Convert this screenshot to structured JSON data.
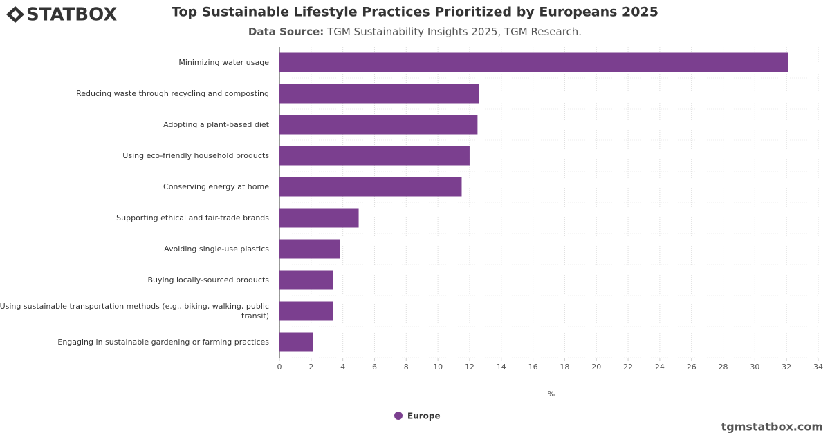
{
  "header": {
    "logo": "STATBOX",
    "title": "Top Sustainable Lifestyle Practices Prioritized by Europeans 2025",
    "source_label": "Data Source:",
    "source": "TGM Sustainability Insights 2025, TGM Research."
  },
  "chart_data": {
    "type": "bar",
    "orientation": "horizontal",
    "categories": [
      "Minimizing water usage",
      "Reducing waste through recycling and composting",
      "Adopting a plant-based diet",
      "Using eco-friendly household products",
      "Conserving energy at home",
      "Supporting ethical and fair-trade brands",
      "Avoiding single-use plastics",
      "Buying locally-sourced products",
      "Using sustainable transportation methods (e.g., biking, walking, public transit)",
      "Engaging in sustainable gardening or farming practices"
    ],
    "series": [
      {
        "name": "Europe",
        "color": "#7b3f8f",
        "values": [
          32.1,
          12.6,
          12.5,
          12.0,
          11.5,
          5.0,
          3.8,
          3.4,
          3.4,
          2.1
        ]
      }
    ],
    "xlim": [
      0,
      34
    ],
    "xticks": [
      0,
      2,
      4,
      6,
      8,
      10,
      12,
      14,
      16,
      18,
      20,
      22,
      24,
      26,
      28,
      30,
      32,
      34
    ],
    "x_label": "%",
    "grid": true
  },
  "footer": {
    "site": "tgmstatbox.com"
  }
}
